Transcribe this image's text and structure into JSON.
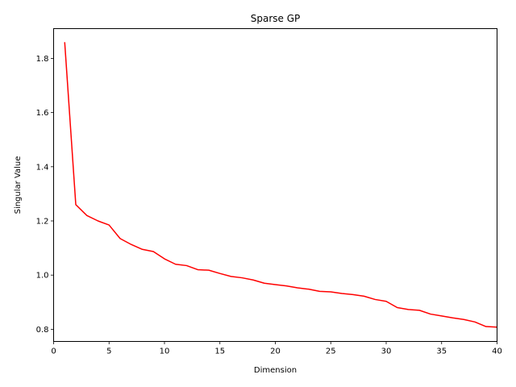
{
  "chart_data": {
    "type": "line",
    "title": "Sparse GP",
    "xlabel": "Dimension",
    "ylabel": "Singular Value",
    "xlim": [
      0,
      40
    ],
    "ylim": [
      0.755,
      1.91
    ],
    "xticks": [
      0,
      5,
      10,
      15,
      20,
      25,
      30,
      35,
      40
    ],
    "yticks": [
      0.8,
      1.0,
      1.2,
      1.4,
      1.6,
      1.8
    ],
    "ytick_labels": [
      "0.8",
      "1.0",
      "1.2",
      "1.4",
      "1.6",
      "1.8"
    ],
    "grid": false,
    "series": [
      {
        "color": "#ff0000",
        "x": [
          1,
          2,
          3,
          4,
          5,
          6,
          7,
          8,
          9,
          10,
          11,
          12,
          13,
          14,
          15,
          16,
          17,
          18,
          19,
          20,
          21,
          22,
          23,
          24,
          25,
          26,
          27,
          28,
          29,
          30,
          31,
          32,
          33,
          34,
          35,
          36,
          37,
          38,
          39,
          40
        ],
        "values": [
          1.86,
          1.26,
          1.22,
          1.2,
          1.185,
          1.135,
          1.113,
          1.095,
          1.087,
          1.06,
          1.04,
          1.035,
          1.02,
          1.018,
          1.006,
          0.995,
          0.99,
          0.982,
          0.97,
          0.965,
          0.96,
          0.953,
          0.948,
          0.94,
          0.938,
          0.932,
          0.928,
          0.922,
          0.91,
          0.903,
          0.88,
          0.873,
          0.87,
          0.856,
          0.849,
          0.842,
          0.836,
          0.827,
          0.81,
          0.808
        ]
      }
    ]
  }
}
